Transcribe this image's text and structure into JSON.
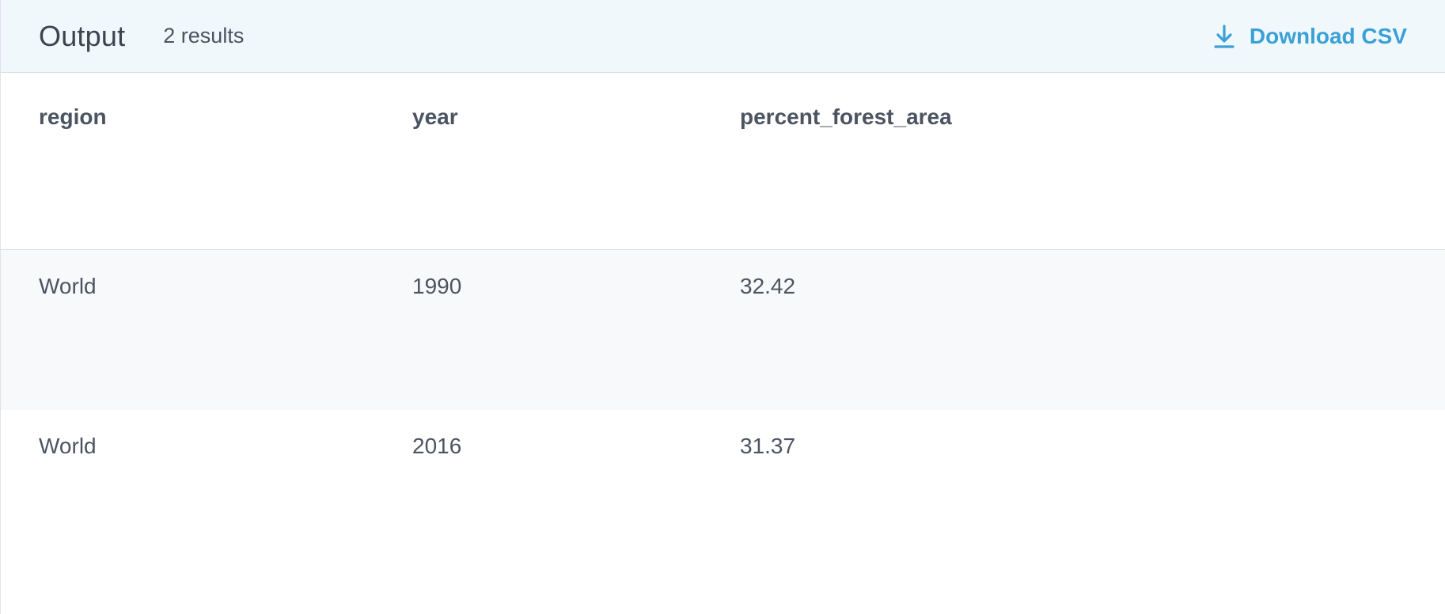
{
  "header": {
    "title": "Output",
    "result_count": "2 results",
    "download_label": "Download CSV",
    "download_icon": "download-icon",
    "accent_color": "#3aa0d8"
  },
  "table": {
    "columns": [
      "region",
      "year",
      "percent_forest_area"
    ],
    "rows": [
      [
        "World",
        "1990",
        "32.42"
      ],
      [
        "World",
        "2016",
        "31.37"
      ]
    ]
  }
}
